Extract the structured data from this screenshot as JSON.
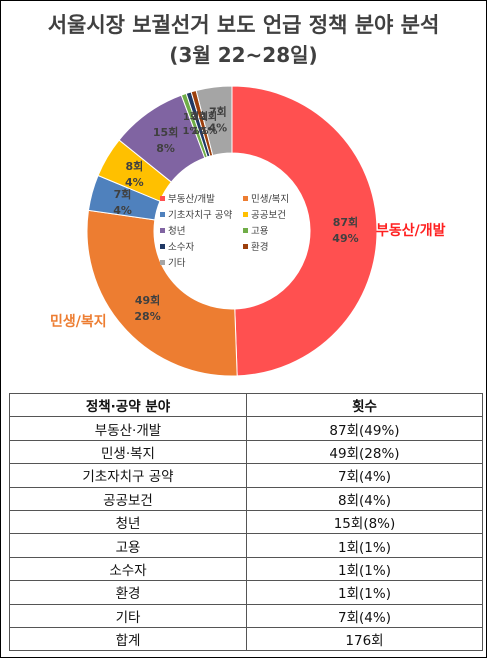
{
  "chart_data": {
    "type": "pie",
    "title": "서울시장 보궐선거 보도 언급 정책 분야 분석",
    "subtitle": "(3월 22~28일)",
    "slices": [
      {
        "name": "부동산/개발",
        "count": 87,
        "count_label": "87회",
        "pct_label": "49%",
        "color": "#ff5050"
      },
      {
        "name": "민생/복지",
        "count": 49,
        "count_label": "49회",
        "pct_label": "28%",
        "color": "#ed7d31"
      },
      {
        "name": "기초자치구 공약",
        "count": 7,
        "count_label": "7회",
        "pct_label": "4%",
        "color": "#4f81bd"
      },
      {
        "name": "공공보건",
        "count": 8,
        "count_label": "8회",
        "pct_label": "4%",
        "color": "#ffc000"
      },
      {
        "name": "청년",
        "count": 15,
        "count_label": "15회",
        "pct_label": "8%",
        "color": "#8064a2"
      },
      {
        "name": "고용",
        "count": 1,
        "count_label": "1회",
        "pct_label": "1%",
        "color": "#70ad47"
      },
      {
        "name": "소수자",
        "count": 1,
        "count_label": "1회",
        "pct_label": "1%",
        "color": "#1f3864"
      },
      {
        "name": "환경",
        "count": 1,
        "count_label": "1회",
        "pct_label": "1%",
        "color": "#9c3f0c"
      },
      {
        "name": "기타",
        "count": 7,
        "count_label": "7회",
        "pct_label": "4%",
        "color": "#a5a5a5"
      }
    ],
    "outer_labels": {
      "real_estate": "부동산/개발",
      "welfare": "민생/복지"
    },
    "legend": {
      "placement": "center",
      "items": [
        "부동산/개발",
        "민생/복지",
        "기초자치구 공약",
        "공공보건",
        "청년",
        "고용",
        "소수자",
        "환경",
        "기타"
      ]
    }
  },
  "table": {
    "headers": [
      "정책·공약 분야",
      "횟수"
    ],
    "rows": [
      [
        "부동산·개발",
        "87회(49%)"
      ],
      [
        "민생·복지",
        "49회(28%)"
      ],
      [
        "기초자치구 공약",
        "7회(4%)"
      ],
      [
        "공공보건",
        "8회(4%)"
      ],
      [
        "청년",
        "15회(8%)"
      ],
      [
        "고용",
        "1회(1%)"
      ],
      [
        "소수자",
        "1회(1%)"
      ],
      [
        "환경",
        "1회(1%)"
      ],
      [
        "기타",
        "7회(4%)"
      ]
    ],
    "total": [
      "합계",
      "176회"
    ]
  }
}
